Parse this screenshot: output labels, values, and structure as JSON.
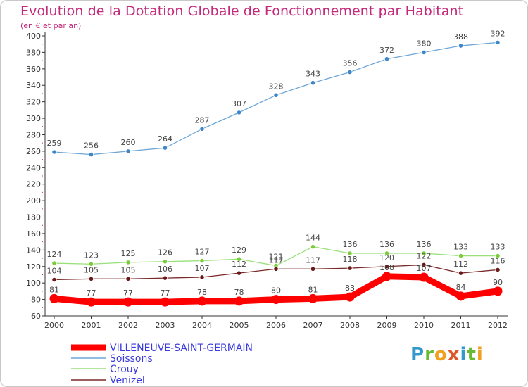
{
  "chart_data": {
    "type": "line",
    "title": "Evolution de la Dotation Globale de Fonctionnement par Habitant",
    "subtitle": "(en € et par an)",
    "x": [
      "2000",
      "2001",
      "2002",
      "2003",
      "2004",
      "2005",
      "2006",
      "2007",
      "2008",
      "2009",
      "2010",
      "2011",
      "2012"
    ],
    "ylim": [
      60,
      400
    ],
    "yticks": [
      60,
      80,
      100,
      120,
      140,
      160,
      180,
      200,
      220,
      240,
      260,
      280,
      300,
      320,
      340,
      360,
      380,
      400
    ],
    "grid": false,
    "legend_position": "bottom-left",
    "series": [
      {
        "name": "VILLENEUVE-SAINT-GERMAIN",
        "color": "#ff0000",
        "values": [
          81,
          77,
          77,
          77,
          78,
          78,
          80,
          81,
          83,
          108,
          107,
          84,
          90
        ],
        "labels": [
          "81",
          "77",
          "77",
          "77",
          "78",
          "78",
          "80",
          "81",
          "83",
          "108",
          "107",
          "84",
          "90"
        ]
      },
      {
        "name": "Soissons",
        "color": "#6fa6d6",
        "marker": "#3f86c8",
        "values": [
          259,
          256,
          260,
          264,
          287,
          307,
          328,
          343,
          356,
          372,
          380,
          388,
          392
        ],
        "labels": [
          "259",
          "256",
          "260",
          "264",
          "287",
          "307",
          "328",
          "343",
          "356",
          "372",
          "380",
          "388",
          "392"
        ]
      },
      {
        "name": "Crouy",
        "color": "#99e07a",
        "marker": "#7acc3a",
        "values": [
          124,
          123,
          125,
          126,
          127,
          129,
          121,
          144,
          136,
          136,
          136,
          133,
          133
        ],
        "labels": [
          "124",
          "123",
          "125",
          "126",
          "127",
          "129",
          "121",
          "144",
          "136",
          "136",
          "136",
          "133",
          "133"
        ]
      },
      {
        "name": "Venizel",
        "color": "#7a2a2a",
        "marker": "#6b1818",
        "values": [
          104,
          105,
          105,
          106,
          107,
          112,
          117,
          117,
          118,
          120,
          122,
          112,
          116
        ],
        "labels": [
          "104",
          "105",
          "105",
          "106",
          "107",
          "112",
          "117",
          "117",
          "118",
          "120",
          "122",
          "112",
          "116"
        ]
      }
    ]
  },
  "logo": {
    "letters": [
      "P",
      "r",
      "o",
      "x",
      "i",
      "t",
      "i"
    ]
  }
}
